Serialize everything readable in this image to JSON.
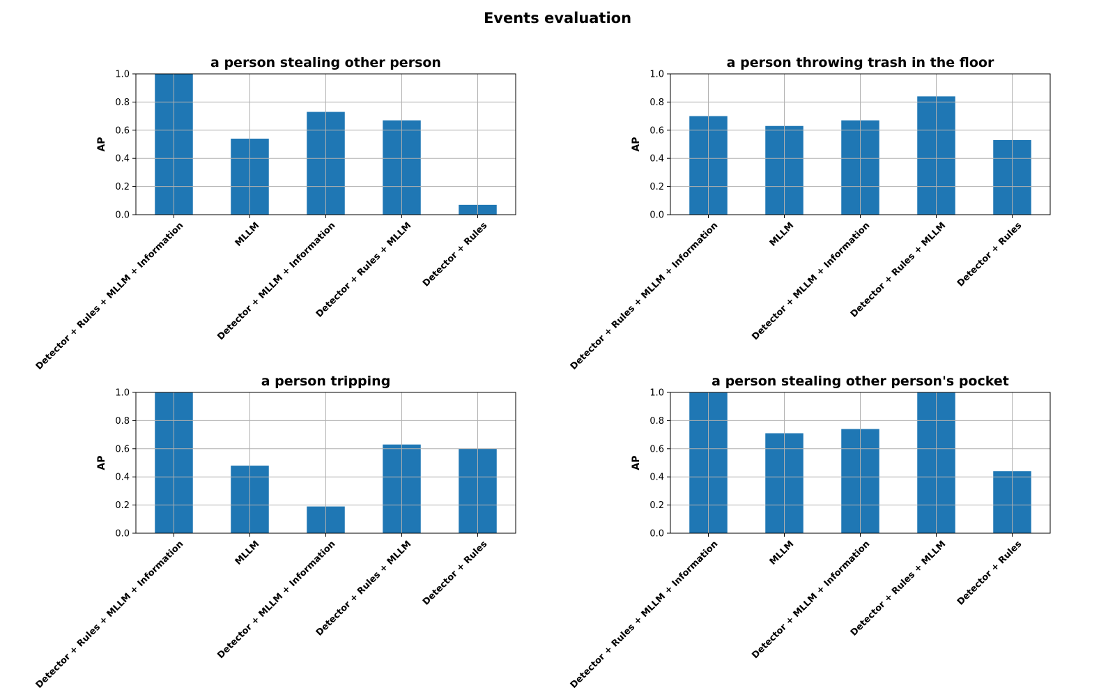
{
  "figure": {
    "title": "Events evaluation"
  },
  "style": {
    "bar_color": "#1f77b4",
    "grid_color": "#b0b0b0",
    "axis_color": "#000000",
    "text_color": "#000000"
  },
  "chart_data": [
    {
      "type": "bar",
      "title": "a person stealing other person",
      "xlabel": "",
      "ylabel": "AP",
      "ylim": [
        0,
        1
      ],
      "yticks": [
        "0.0",
        "0.2",
        "0.4",
        "0.6",
        "0.8",
        "1.0"
      ],
      "grid": true,
      "categories": [
        "Detector + Rules + MLLM + Information",
        "MLLM",
        "Detector + MLLM + Information",
        "Detector + Rules + MLLM",
        "Detector + Rules"
      ],
      "values": [
        1.0,
        0.54,
        0.73,
        0.67,
        0.07
      ]
    },
    {
      "type": "bar",
      "title": "a person throwing trash in the floor",
      "xlabel": "",
      "ylabel": "AP",
      "ylim": [
        0,
        1
      ],
      "yticks": [
        "0.0",
        "0.2",
        "0.4",
        "0.6",
        "0.8",
        "1.0"
      ],
      "grid": true,
      "categories": [
        "Detector + Rules + MLLM + Information",
        "MLLM",
        "Detector + MLLM + Information",
        "Detector + Rules + MLLM",
        "Detector + Rules"
      ],
      "values": [
        0.7,
        0.63,
        0.67,
        0.84,
        0.53
      ]
    },
    {
      "type": "bar",
      "title": "a person tripping",
      "xlabel": "",
      "ylabel": "AP",
      "ylim": [
        0,
        1
      ],
      "yticks": [
        "0.0",
        "0.2",
        "0.4",
        "0.6",
        "0.8",
        "1.0"
      ],
      "grid": true,
      "categories": [
        "Detector + Rules + MLLM + Information",
        "MLLM",
        "Detector + MLLM + Information",
        "Detector + Rules + MLLM",
        "Detector + Rules"
      ],
      "values": [
        1.0,
        0.48,
        0.19,
        0.63,
        0.6
      ]
    },
    {
      "type": "bar",
      "title": "a person stealing other person's pocket",
      "xlabel": "",
      "ylabel": "AP",
      "ylim": [
        0,
        1
      ],
      "yticks": [
        "0.0",
        "0.2",
        "0.4",
        "0.6",
        "0.8",
        "1.0"
      ],
      "grid": true,
      "categories": [
        "Detector + Rules + MLLM + Information",
        "MLLM",
        "Detector + MLLM + Information",
        "Detector + Rules + MLLM",
        "Detector + Rules"
      ],
      "values": [
        1.0,
        0.71,
        0.74,
        1.0,
        0.44
      ]
    }
  ]
}
